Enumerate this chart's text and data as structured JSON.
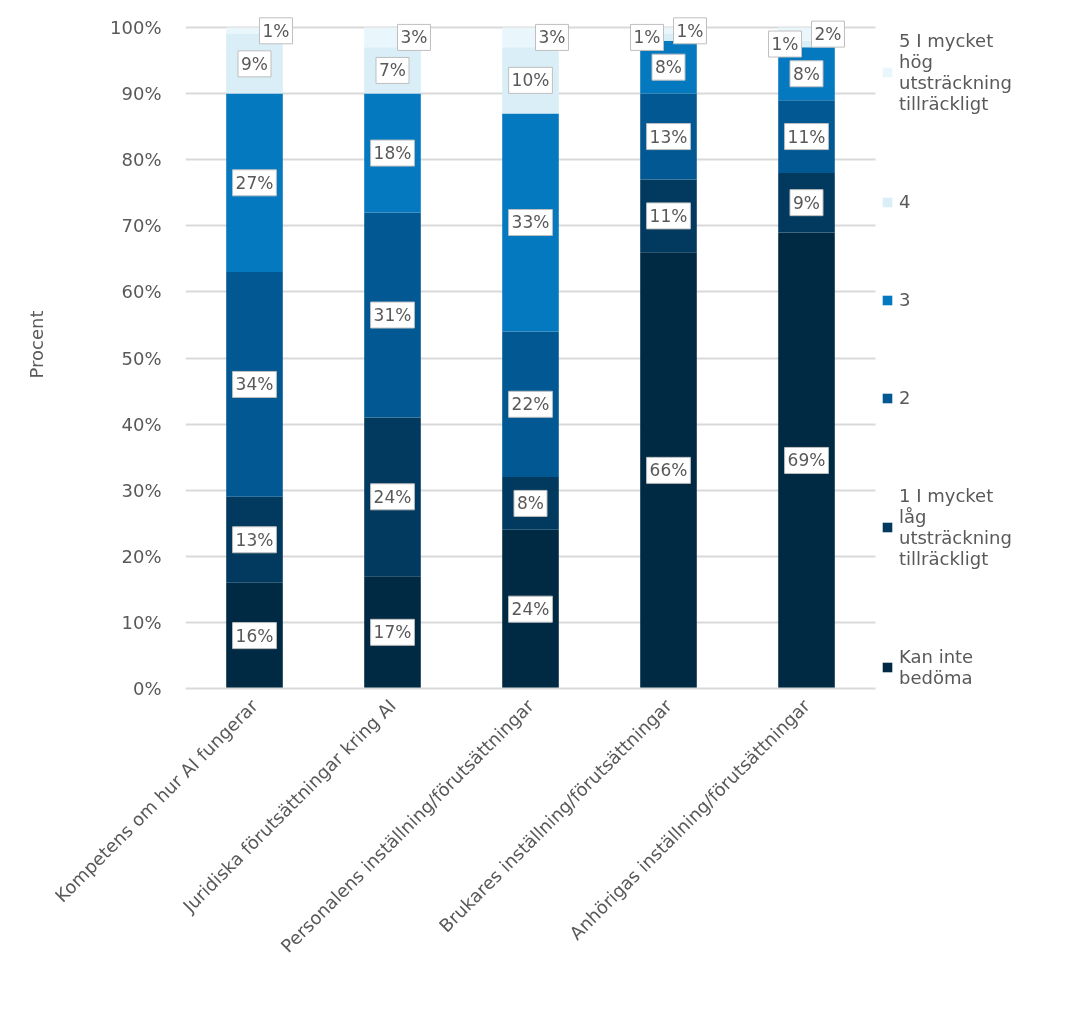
{
  "chart_data": {
    "type": "bar",
    "stacked": true,
    "ylabel": "Procent",
    "categories": [
      "Kompetens om hur AI fungerar",
      "Juridiska förutsättningar kring AI",
      "Personalens inställning/förutsättningar",
      "Brukares inställning/förutsättningar",
      "Anhörigas inställning/förutsättningar"
    ],
    "ylim": [
      0,
      100
    ],
    "yticks": [
      {
        "value": 0,
        "label": "0%"
      },
      {
        "value": 10,
        "label": "10%"
      },
      {
        "value": 20,
        "label": "20%"
      },
      {
        "value": 30,
        "label": "30%"
      },
      {
        "value": 40,
        "label": "40%"
      },
      {
        "value": 50,
        "label": "50%"
      },
      {
        "value": 60,
        "label": "60%"
      },
      {
        "value": 70,
        "label": "70%"
      },
      {
        "value": 80,
        "label": "80%"
      },
      {
        "value": 90,
        "label": "90%"
      },
      {
        "value": 100,
        "label": "100%"
      }
    ],
    "grid": "y",
    "legend": "right",
    "series": [
      {
        "name": "Kan inte bedöma",
        "color": "#002a44",
        "values": [
          16,
          17,
          24,
          66,
          69
        ],
        "value_labels": [
          "16%",
          "17%",
          "24%",
          "66%",
          "69%"
        ]
      },
      {
        "name": "1 I mycket låg utsträckning tillräckligt",
        "color": "#023a5f",
        "values": [
          13,
          24,
          8,
          11,
          9
        ],
        "value_labels": [
          "13%",
          "24%",
          "8%",
          "11%",
          "9%"
        ]
      },
      {
        "name": "2",
        "color": "#015892",
        "values": [
          34,
          31,
          22,
          13,
          11
        ],
        "value_labels": [
          "34%",
          "31%",
          "22%",
          "13%",
          "11%"
        ]
      },
      {
        "name": "3",
        "color": "#0479bf",
        "values": [
          27,
          18,
          33,
          8,
          8
        ],
        "value_labels": [
          "27%",
          "18%",
          "33%",
          "8%",
          "8%"
        ]
      },
      {
        "name": "4",
        "color": "#d9eef6",
        "values": [
          9,
          7,
          10,
          1,
          1
        ],
        "value_labels": [
          "9%",
          "7%",
          "10%",
          "1%",
          "1%"
        ]
      },
      {
        "name": "5 I mycket hög utsträckning tillräckligt",
        "color": "#e9f6fb",
        "values": [
          1,
          3,
          3,
          1,
          2
        ],
        "value_labels": [
          "1%",
          "3%",
          "3%",
          "1%",
          "2%"
        ]
      }
    ]
  }
}
